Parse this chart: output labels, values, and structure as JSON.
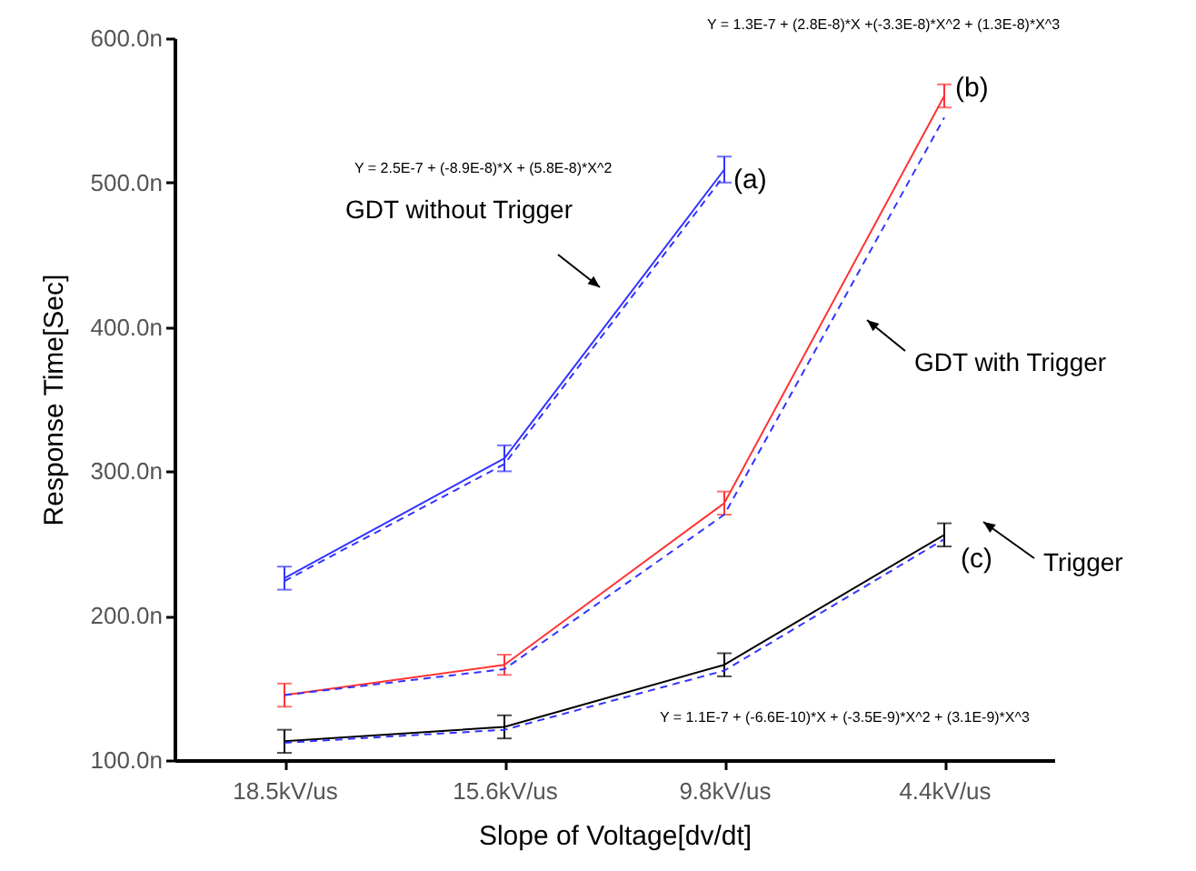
{
  "chart_data": {
    "type": "line",
    "xlabel": "Slope of Voltage[dv/dt]",
    "ylabel": "Response Time[Sec]",
    "categories": [
      "18.5kV/us",
      "15.6kV/us",
      "9.8kV/us",
      "4.4kV/us"
    ],
    "ylim": [
      100,
      600
    ],
    "yticks": [
      {
        "value": 100,
        "label": "100.0n"
      },
      {
        "value": 200,
        "label": "200.0n"
      },
      {
        "value": 300,
        "label": "300.0n"
      },
      {
        "value": 400,
        "label": "400.0n"
      },
      {
        "value": 500,
        "label": "500.0n"
      },
      {
        "value": 600,
        "label": "600.0n"
      }
    ],
    "grid": false,
    "marker": "none",
    "series": [
      {
        "color": "#3333ff",
        "values": [
          226,
          309,
          509,
          null
        ],
        "errors": [
          8,
          9,
          9,
          null
        ]
      },
      {
        "color": "#ff3333",
        "values": [
          145,
          166,
          278,
          560
        ],
        "errors": [
          8,
          7,
          8,
          8
        ]
      },
      {
        "color": "#000000",
        "values": [
          113,
          123,
          166,
          256
        ],
        "errors": [
          8,
          8,
          8,
          8
        ]
      },
      {
        "type": "line",
        "line_style": "dashed",
        "color": "#3333ff",
        "values": [
          224,
          305,
          505,
          null
        ]
      },
      {
        "type": "line",
        "line_style": "dashed",
        "color": "#3333ff",
        "values": [
          145,
          163,
          270,
          545
        ]
      },
      {
        "type": "line",
        "line_style": "dashed",
        "color": "#3333ff",
        "values": [
          112,
          121,
          162,
          253
        ]
      }
    ],
    "annotations": [
      "Y = 2.5E-7 + (-8.9E-8)*X + (5.8E-8)*X^2",
      "GDT without Trigger",
      "Y = 1.3E-7 + (2.8E-8)*X +(-3.3E-8)*X^2 + (1.3E-8)*X^3",
      "GDT with Trigger",
      "Trigger",
      "Y = 1.1E-7 + (-6.6E-10)*X + (-3.5E-9)*X^2 + (3.1E-9)*X^3",
      {
        "text": "(a)",
        "x": "9.8kV/us",
        "y": 509
      },
      {
        "text": "(b)",
        "x": "4.4kV/us",
        "y": 560
      },
      {
        "text": "(c)",
        "x": "4.4kV/us",
        "y": 256
      }
    ]
  }
}
